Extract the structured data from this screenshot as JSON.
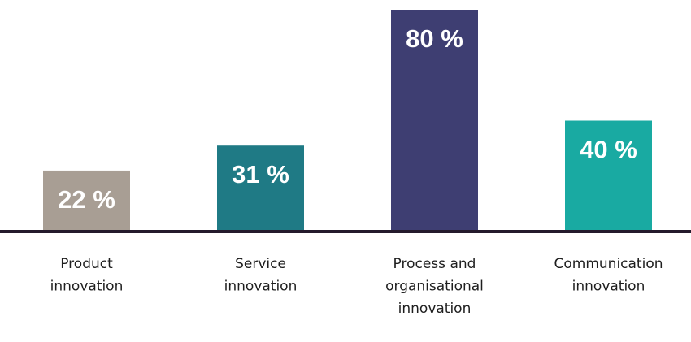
{
  "chart_data": {
    "type": "bar",
    "categories": [
      [
        "Product",
        "innovation"
      ],
      [
        "Service",
        "innovation"
      ],
      [
        "Process and",
        "organisational",
        "innovation"
      ],
      [
        "Communication",
        "innovation"
      ]
    ],
    "values": [
      22,
      31,
      80,
      40
    ],
    "value_labels": [
      "22 %",
      "31 %",
      "80 %",
      "40 %"
    ],
    "colors": [
      "#a89e94",
      "#1f7a85",
      "#3e3e72",
      "#19aaa2"
    ],
    "axis_color": "#241a2c",
    "ylim": [
      0,
      80
    ],
    "title": "",
    "xlabel": "",
    "ylabel": "",
    "grid": false,
    "legend": "none"
  }
}
